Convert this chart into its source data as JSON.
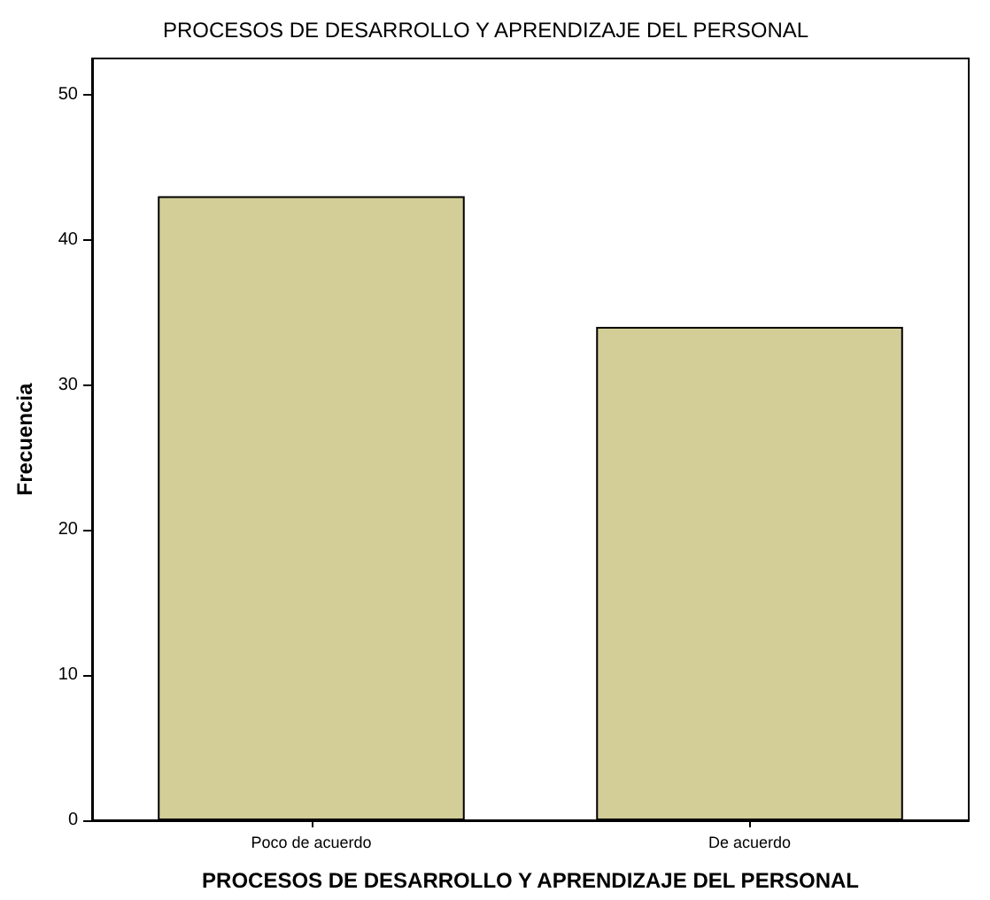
{
  "chart_data": {
    "type": "bar",
    "title": "PROCESOS DE DESARROLLO Y APRENDIZAJE DEL PERSONAL",
    "xlabel": "PROCESOS DE DESARROLLO Y APRENDIZAJE DEL PERSONAL",
    "ylabel": "Frecuencia",
    "categories": [
      "Poco de acuerdo",
      "De acuerdo"
    ],
    "values": [
      43,
      34
    ],
    "color": "#d3ce98",
    "ylim": [
      0,
      52.5
    ],
    "yticks": [
      0,
      10,
      20,
      30,
      40,
      50
    ],
    "grid": false
  }
}
